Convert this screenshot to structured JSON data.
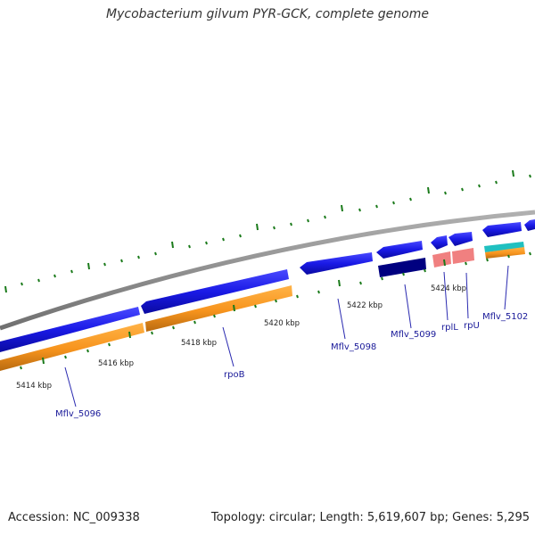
{
  "title": "Mycobacterium gilvum PYR-GCK, complete genome",
  "footer": {
    "accession": "Accession: NC_009338",
    "stats": "Topology: circular; Length: 5,619,607 bp; Genes: 5,295"
  },
  "scale_labels": [
    "5414 kbp",
    "5416 kbp",
    "5418 kbp",
    "5420 kbp",
    "5422 kbp",
    "5424 kbp"
  ],
  "gene_labels": [
    "Mflv_5096",
    "rpoB",
    "Mflv_5098",
    "Mflv_5099",
    "rplL",
    "rpU",
    "Mflv_5102"
  ],
  "colors": {
    "backbone": "#8c8c8c",
    "cds": "#1a1ae6",
    "cds_dark": "#000080",
    "gene": "#f7941d",
    "rrna": "#f08080",
    "trna": "#20c0c0",
    "ticks": "#1a7a1a",
    "label_line": "#2a2ab0"
  }
}
